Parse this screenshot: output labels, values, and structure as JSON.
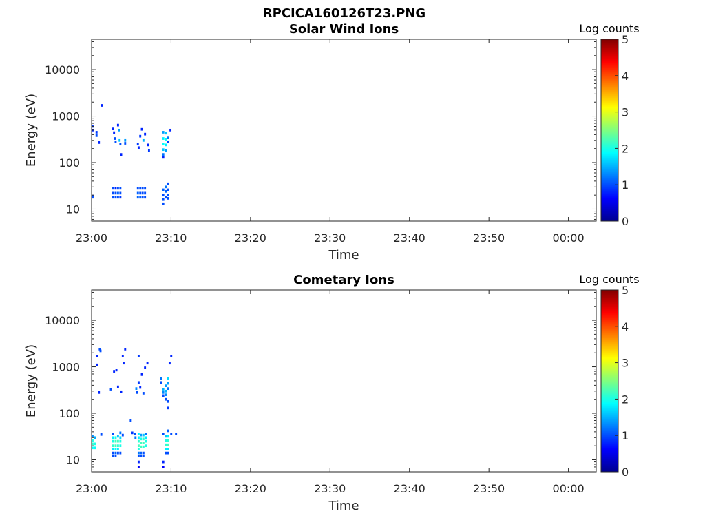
{
  "figure_title": "RPCICA160126T23.PNG",
  "chart_data": [
    {
      "type": "heatmap",
      "title": "Solar Wind Ions",
      "xlabel": "Time",
      "ylabel": "Energy (eV)",
      "x_ticks": [
        "23:00",
        "23:10",
        "23:20",
        "23:30",
        "23:40",
        "23:50",
        "00:00"
      ],
      "xlim_minutes": [
        0,
        63.5
      ],
      "y_ticks": [
        "10",
        "100",
        "1000",
        "10000"
      ],
      "ylim": [
        5.5,
        45000
      ],
      "yscale": "log",
      "colorbar": {
        "label": "Log counts",
        "ticks": [
          "0",
          "1",
          "2",
          "3",
          "4",
          "5"
        ],
        "range": [
          0,
          5
        ],
        "colormap": "jet"
      },
      "cells": [
        [
          0,
          18,
          1.0
        ],
        [
          0,
          19,
          1.0
        ],
        [
          0,
          500,
          0.8
        ],
        [
          0,
          600,
          0.9
        ],
        [
          0.5,
          450,
          0.9
        ],
        [
          0.5,
          380,
          1.0
        ],
        [
          0.8,
          270,
          0.8
        ],
        [
          1.2,
          1700,
          0.8
        ],
        [
          2.6,
          530,
          0.8
        ],
        [
          2.7,
          440,
          0.8
        ],
        [
          2.8,
          330,
          1.0
        ],
        [
          2.9,
          280,
          1.0
        ],
        [
          3.2,
          640,
          0.8
        ],
        [
          3.3,
          500,
          1.4
        ],
        [
          3.4,
          300,
          1.6
        ],
        [
          3.5,
          250,
          1.0
        ],
        [
          3.6,
          150,
          0.8
        ],
        [
          4.1,
          300,
          1.4
        ],
        [
          4.1,
          260,
          1.0
        ],
        [
          5.7,
          250,
          0.9
        ],
        [
          5.8,
          210,
          0.8
        ],
        [
          6.0,
          370,
          0.9
        ],
        [
          6.2,
          520,
          0.8
        ],
        [
          6.4,
          300,
          1.5
        ],
        [
          6.6,
          410,
          0.8
        ],
        [
          7.0,
          240,
          0.8
        ],
        [
          7.1,
          180,
          0.9
        ],
        [
          8.9,
          450,
          1.4
        ],
        [
          8.9,
          330,
          1.8
        ],
        [
          8.9,
          250,
          1.9
        ],
        [
          8.9,
          190,
          1.6
        ],
        [
          8.9,
          150,
          1.2
        ],
        [
          8.9,
          130,
          0.8
        ],
        [
          9.2,
          430,
          1.6
        ],
        [
          9.2,
          310,
          1.9
        ],
        [
          9.2,
          240,
          1.8
        ],
        [
          9.2,
          180,
          1.4
        ],
        [
          9.5,
          340,
          1.2
        ],
        [
          9.5,
          280,
          0.9
        ],
        [
          9.8,
          500,
          0.8
        ],
        [
          2.6,
          28,
          1.0
        ],
        [
          2.6,
          22,
          1.0
        ],
        [
          2.6,
          18,
          1.0
        ],
        [
          2.9,
          28,
          0.8
        ],
        [
          2.9,
          22,
          1.0
        ],
        [
          2.9,
          18,
          1.0
        ],
        [
          3.2,
          28,
          1.0
        ],
        [
          3.2,
          22,
          1.1
        ],
        [
          3.2,
          18,
          1.0
        ],
        [
          3.5,
          28,
          1.0
        ],
        [
          3.5,
          22,
          1.0
        ],
        [
          3.5,
          18,
          0.9
        ],
        [
          5.7,
          28,
          1.0
        ],
        [
          5.7,
          22,
          1.1
        ],
        [
          5.7,
          18,
          1.1
        ],
        [
          6.0,
          28,
          1.0
        ],
        [
          6.0,
          22,
          1.0
        ],
        [
          6.0,
          18,
          1.1
        ],
        [
          6.3,
          28,
          1.0
        ],
        [
          6.3,
          22,
          1.0
        ],
        [
          6.3,
          18,
          1.0
        ],
        [
          6.6,
          28,
          1.0
        ],
        [
          6.6,
          22,
          1.0
        ],
        [
          6.6,
          18,
          1.0
        ],
        [
          8.9,
          26,
          1.1
        ],
        [
          8.9,
          20,
          1.0
        ],
        [
          8.9,
          16,
          1.0
        ],
        [
          8.9,
          13,
          1.0
        ],
        [
          9.2,
          30,
          1.2
        ],
        [
          9.2,
          24,
          1.1
        ],
        [
          9.2,
          18,
          1.0
        ],
        [
          9.5,
          35,
          1.0
        ],
        [
          9.5,
          26,
          1.0
        ],
        [
          9.5,
          20,
          1.0
        ],
        [
          9.5,
          17,
          1.0
        ]
      ]
    },
    {
      "type": "heatmap",
      "title": "Cometary Ions",
      "xlabel": "Time",
      "ylabel": "Energy (eV)",
      "x_ticks": [
        "23:00",
        "23:10",
        "23:20",
        "23:30",
        "23:40",
        "23:50",
        "00:00"
      ],
      "xlim_minutes": [
        0,
        63.5
      ],
      "y_ticks": [
        "10",
        "100",
        "1000",
        "10000"
      ],
      "ylim": [
        5.5,
        45000
      ],
      "yscale": "log",
      "colorbar": {
        "label": "Log counts",
        "ticks": [
          "0",
          "1",
          "2",
          "3",
          "4",
          "5"
        ],
        "range": [
          0,
          5
        ],
        "colormap": "jet"
      },
      "cells": [
        [
          0,
          32,
          1.3
        ],
        [
          0,
          26,
          2.0
        ],
        [
          0,
          22,
          2.1
        ],
        [
          0,
          18,
          1.9
        ],
        [
          0.3,
          30,
          1.5
        ],
        [
          0.3,
          22,
          2.0
        ],
        [
          0.3,
          18,
          1.9
        ],
        [
          1.1,
          35,
          1.0
        ],
        [
          0.6,
          1700,
          0.8
        ],
        [
          0.6,
          1100,
          0.8
        ],
        [
          0.8,
          280,
          0.8
        ],
        [
          0.9,
          2400,
          1.0
        ],
        [
          1.0,
          2200,
          1.0
        ],
        [
          2.3,
          330,
          1.0
        ],
        [
          2.7,
          800,
          0.8
        ],
        [
          3.0,
          850,
          0.8
        ],
        [
          3.2,
          370,
          0.8
        ],
        [
          3.6,
          290,
          0.8
        ],
        [
          3.8,
          1700,
          0.8
        ],
        [
          3.9,
          1200,
          0.8
        ],
        [
          4.1,
          2400,
          0.8
        ],
        [
          4.8,
          70,
          1.0
        ],
        [
          5.0,
          38,
          0.9
        ],
        [
          2.6,
          36,
          1.0
        ],
        [
          2.6,
          30,
          1.8
        ],
        [
          2.6,
          25,
          2.0
        ],
        [
          2.6,
          20,
          2.1
        ],
        [
          2.6,
          17,
          1.8
        ],
        [
          2.6,
          14,
          1.0
        ],
        [
          2.6,
          12,
          1.0
        ],
        [
          2.9,
          30,
          2.0
        ],
        [
          2.9,
          25,
          2.2
        ],
        [
          2.9,
          20,
          2.2
        ],
        [
          2.9,
          17,
          1.9
        ],
        [
          2.9,
          14,
          1.1
        ],
        [
          2.9,
          12,
          1.0
        ],
        [
          3.2,
          32,
          1.6
        ],
        [
          3.2,
          25,
          2.2
        ],
        [
          3.2,
          20,
          2.1
        ],
        [
          3.2,
          17,
          1.8
        ],
        [
          3.2,
          14,
          1.0
        ],
        [
          3.5,
          38,
          1.2
        ],
        [
          3.5,
          30,
          1.7
        ],
        [
          3.5,
          25,
          2.0
        ],
        [
          3.5,
          20,
          2.0
        ],
        [
          3.5,
          14,
          1.0
        ],
        [
          3.8,
          34,
          1.0
        ],
        [
          5.5,
          340,
          1.3
        ],
        [
          5.6,
          280,
          1.0
        ],
        [
          5.8,
          460,
          0.9
        ],
        [
          5.8,
          1700,
          0.9
        ],
        [
          6.0,
          360,
          0.8
        ],
        [
          6.2,
          680,
          0.8
        ],
        [
          6.4,
          270,
          1.0
        ],
        [
          6.6,
          950,
          0.8
        ],
        [
          6.9,
          1200,
          0.8
        ],
        [
          5.3,
          36,
          1.0
        ],
        [
          5.4,
          30,
          1.2
        ],
        [
          5.8,
          36,
          1.8
        ],
        [
          5.8,
          30,
          1.8
        ],
        [
          5.8,
          25,
          2.1
        ],
        [
          5.8,
          20,
          2.2
        ],
        [
          5.8,
          17,
          2.0
        ],
        [
          5.8,
          14,
          1.2
        ],
        [
          5.8,
          12,
          1.0
        ],
        [
          5.8,
          9,
          0.8
        ],
        [
          5.8,
          7,
          0.6
        ],
        [
          6.1,
          34,
          1.4
        ],
        [
          6.1,
          28,
          2.0
        ],
        [
          6.1,
          23,
          2.2
        ],
        [
          6.1,
          19,
          2.2
        ],
        [
          6.1,
          14,
          1.1
        ],
        [
          6.1,
          12,
          1.0
        ],
        [
          6.4,
          34,
          1.6
        ],
        [
          6.4,
          28,
          2.1
        ],
        [
          6.4,
          23,
          2.2
        ],
        [
          6.4,
          19,
          2.1
        ],
        [
          6.4,
          14,
          1.0
        ],
        [
          6.4,
          12,
          1.0
        ],
        [
          6.7,
          36,
          1.2
        ],
        [
          6.7,
          30,
          1.8
        ],
        [
          6.7,
          25,
          2.0
        ],
        [
          6.7,
          20,
          2.0
        ],
        [
          8.6,
          560,
          1.2
        ],
        [
          8.6,
          460,
          1.0
        ],
        [
          8.9,
          330,
          1.5
        ],
        [
          8.9,
          280,
          1.3
        ],
        [
          8.9,
          240,
          1.0
        ],
        [
          8.9,
          36,
          1.0
        ],
        [
          8.9,
          9,
          0.8
        ],
        [
          8.9,
          7,
          0.6
        ],
        [
          9.2,
          390,
          1.4
        ],
        [
          9.2,
          300,
          1.5
        ],
        [
          9.2,
          250,
          1.3
        ],
        [
          9.2,
          200,
          1.0
        ],
        [
          9.2,
          32,
          1.6
        ],
        [
          9.2,
          26,
          2.0
        ],
        [
          9.2,
          21,
          2.1
        ],
        [
          9.2,
          17,
          1.8
        ],
        [
          9.2,
          14,
          1.0
        ],
        [
          9.5,
          560,
          1.7
        ],
        [
          9.5,
          440,
          1.4
        ],
        [
          9.5,
          340,
          1.2
        ],
        [
          9.5,
          180,
          1.0
        ],
        [
          9.5,
          130,
          0.9
        ],
        [
          9.5,
          42,
          1.1
        ],
        [
          9.5,
          32,
          1.8
        ],
        [
          9.5,
          26,
          2.1
        ],
        [
          9.5,
          21,
          2.2
        ],
        [
          9.5,
          17,
          1.8
        ],
        [
          9.5,
          14,
          1.0
        ],
        [
          9.7,
          1200,
          0.8
        ],
        [
          9.9,
          1700,
          0.8
        ],
        [
          9.9,
          36,
          1.0
        ],
        [
          10.5,
          36,
          1.0
        ]
      ]
    }
  ]
}
